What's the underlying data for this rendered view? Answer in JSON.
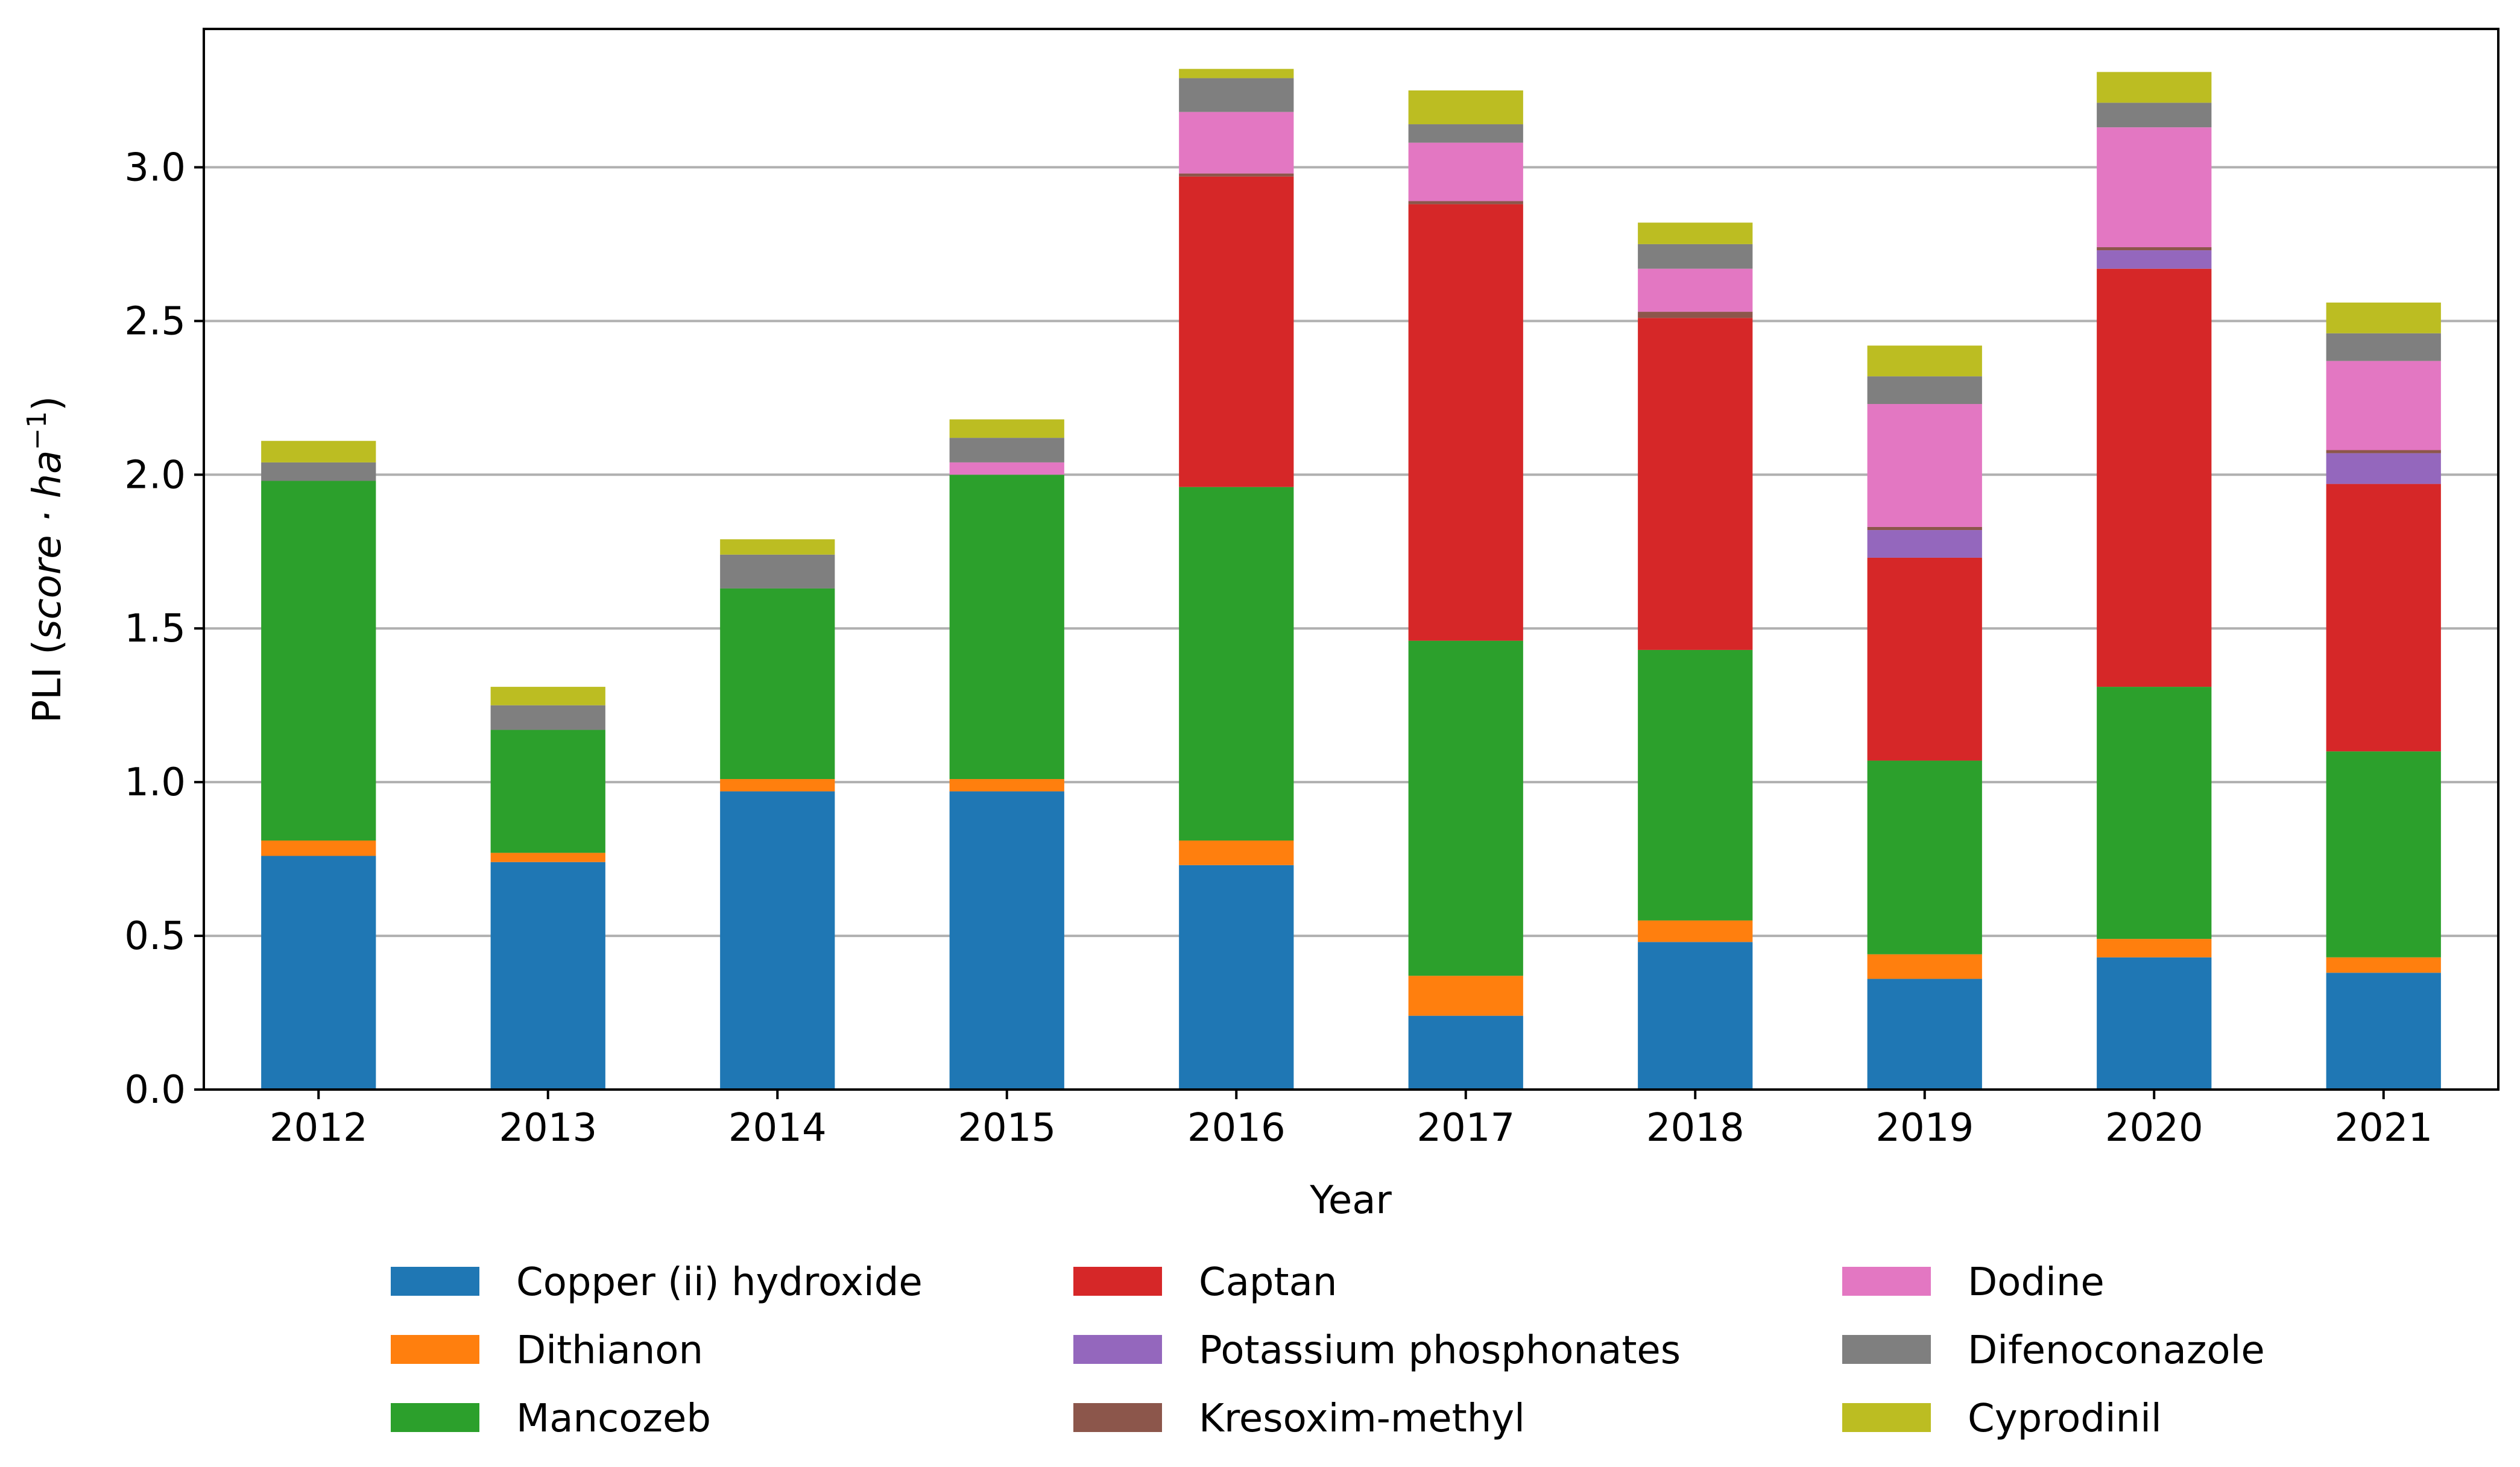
{
  "chart_data": {
    "type": "bar",
    "stacked": true,
    "xlabel": "Year",
    "ylabel": {
      "prefix": "PLI (",
      "italic_part": "score · ha",
      "superscript": "−1",
      "suffix": ")"
    },
    "ylim": [
      0,
      3.45
    ],
    "yticks": [
      "0.0",
      "0.5",
      "1.0",
      "1.5",
      "2.0",
      "2.5",
      "3.0"
    ],
    "grid": "horizontal",
    "legend_position": "bottom",
    "categories": [
      "2012",
      "2013",
      "2014",
      "2015",
      "2016",
      "2017",
      "2018",
      "2019",
      "2020",
      "2021"
    ],
    "series": [
      {
        "name": "Copper (ii) hydroxide",
        "color": "#1f77b4",
        "values": [
          0.76,
          0.74,
          0.97,
          0.97,
          0.73,
          0.24,
          0.48,
          0.36,
          0.43,
          0.38
        ]
      },
      {
        "name": "Dithianon",
        "color": "#ff7f0e",
        "values": [
          0.05,
          0.03,
          0.04,
          0.04,
          0.08,
          0.13,
          0.07,
          0.08,
          0.06,
          0.05
        ]
      },
      {
        "name": "Mancozeb",
        "color": "#2ca02c",
        "values": [
          1.17,
          0.4,
          0.62,
          0.99,
          1.15,
          1.09,
          0.88,
          0.63,
          0.82,
          0.67
        ]
      },
      {
        "name": "Captan",
        "color": "#d62728",
        "values": [
          0,
          0,
          0,
          0,
          1.01,
          1.42,
          1.08,
          0.66,
          1.36,
          0.87
        ]
      },
      {
        "name": "Potassium phosphonates",
        "color": "#9467bd",
        "values": [
          0,
          0,
          0,
          0,
          0,
          0,
          0,
          0.09,
          0.06,
          0.1
        ]
      },
      {
        "name": "Kresoxim-methyl",
        "color": "#8c564b",
        "values": [
          0,
          0,
          0,
          0,
          0.01,
          0.01,
          0.02,
          0.01,
          0.01,
          0.01
        ]
      },
      {
        "name": "Dodine",
        "color": "#e377c2",
        "values": [
          0,
          0,
          0,
          0.04,
          0.2,
          0.19,
          0.14,
          0.4,
          0.39,
          0.29
        ]
      },
      {
        "name": "Difenoconazole",
        "color": "#7f7f7f",
        "values": [
          0.06,
          0.08,
          0.11,
          0.08,
          0.11,
          0.06,
          0.08,
          0.09,
          0.08,
          0.09
        ]
      },
      {
        "name": "Cyprodinil",
        "color": "#bcbd22",
        "values": [
          0.07,
          0.06,
          0.05,
          0.06,
          0.03,
          0.11,
          0.07,
          0.1,
          0.1,
          0.1
        ]
      }
    ]
  }
}
